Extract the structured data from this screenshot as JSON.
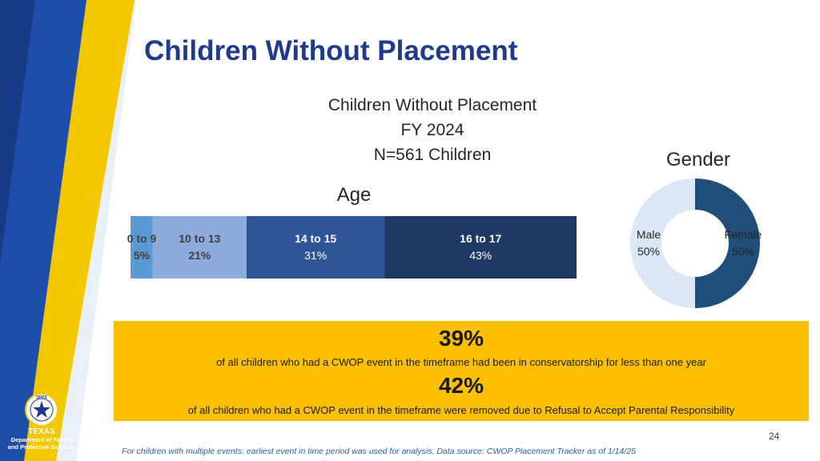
{
  "slide": {
    "title": "Children Without Placement",
    "page_number": "24",
    "footnote": "For children with multiple events, earliest event in time period was used for analysis. Data source: CWOP Placement Tracker as of 1/14/25"
  },
  "logo": {
    "seal_text": "DFPS",
    "line1": "TEXAS",
    "line2": "Department of Family",
    "line3": "and Protective Services"
  },
  "colors": {
    "navy": "#1f3a8a",
    "blue_band": "#2e5fa8",
    "light_band": "#a9c4e6",
    "gold": "#fdc000"
  },
  "chart_data": [
    {
      "type": "bar",
      "subtype": "stacked-100",
      "title": "Children Without Placement",
      "subtitle_lines": [
        "FY 2024",
        "N=561 Children"
      ],
      "label": "Age",
      "categories": [
        "0 to 9",
        "10 to 13",
        "14 to 15",
        "16 to 17"
      ],
      "values": [
        5,
        21,
        31,
        43
      ],
      "value_labels": [
        "5%",
        "21%",
        "31%",
        "43%"
      ],
      "colors": [
        "#5b9bd5",
        "#8faadc",
        "#2f5597",
        "#203864"
      ],
      "unit": "%"
    },
    {
      "type": "pie",
      "subtype": "donut",
      "label": "Gender",
      "categories": [
        "Male",
        "Female"
      ],
      "values": [
        50,
        50
      ],
      "value_labels": [
        "50%",
        "50%"
      ],
      "colors": [
        "#dae7f6",
        "#1f4e79"
      ],
      "unit": "%"
    }
  ],
  "stats": [
    {
      "value": "39%",
      "text": "of all children who had a CWOP event in the timeframe had been in conservatorship for less than one year"
    },
    {
      "value": "42%",
      "text": "of all children who had a CWOP event in the timeframe were removed due to Refusal to Accept Parental Responsibility"
    }
  ]
}
